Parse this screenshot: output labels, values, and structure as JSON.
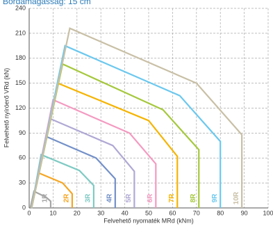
{
  "chart_data": {
    "type": "line",
    "title": "Bordamagasság: 15 cm",
    "xlabel": "Felvehető nyomaték MRd (kNm)",
    "ylabel": "Felvehető nyíróerő VRd (kN)",
    "xlim": [
      0,
      100
    ],
    "xticks": [
      0,
      10,
      20,
      30,
      40,
      50,
      60,
      70,
      80,
      90,
      100
    ],
    "ylim": [
      0,
      240
    ],
    "yticks": [
      0,
      30,
      60,
      90,
      120,
      150,
      180,
      210,
      240
    ],
    "grid": true,
    "series": [
      {
        "name": "1R",
        "color": "#a6a6a6",
        "x": [
          0.5,
          2,
          7,
          9,
          9
        ],
        "values": [
          0,
          20,
          13,
          8,
          0
        ]
      },
      {
        "name": "2R",
        "color": "#f5a623",
        "x": [
          1,
          4,
          14,
          18,
          18
        ],
        "values": [
          0,
          42,
          30,
          17,
          0
        ]
      },
      {
        "name": "3R",
        "color": "#7fcac3",
        "x": [
          1,
          5,
          21,
          27,
          27
        ],
        "values": [
          0,
          64,
          45,
          27,
          0
        ]
      },
      {
        "name": "4R",
        "color": "#7390c8",
        "x": [
          1,
          7,
          28,
          36,
          36
        ],
        "values": [
          0,
          86,
          60,
          35,
          0
        ]
      },
      {
        "name": "5R",
        "color": "#b0a8d4",
        "x": [
          1,
          9,
          35,
          44,
          44
        ],
        "values": [
          0,
          107,
          75,
          44,
          0
        ]
      },
      {
        "name": "6R",
        "color": "#f49ac1",
        "x": [
          1,
          10,
          42,
          53,
          53
        ],
        "values": [
          0,
          130,
          90,
          53,
          0
        ]
      },
      {
        "name": "7R",
        "color": "#f5b400",
        "x": [
          1,
          12,
          50,
          62,
          62
        ],
        "values": [
          0,
          150,
          105,
          62,
          0
        ]
      },
      {
        "name": "8R",
        "color": "#a5c83c",
        "x": [
          1,
          14,
          56,
          71,
          71
        ],
        "values": [
          0,
          173,
          118,
          70,
          0
        ]
      },
      {
        "name": "9R",
        "color": "#6cc8ee",
        "x": [
          1,
          15,
          63,
          80,
          80
        ],
        "values": [
          0,
          195,
          135,
          80,
          0
        ]
      },
      {
        "name": "10R",
        "color": "#c8bfa5",
        "x": [
          1,
          17,
          70,
          89,
          89
        ],
        "values": [
          0,
          216,
          150,
          88,
          0
        ]
      }
    ]
  }
}
